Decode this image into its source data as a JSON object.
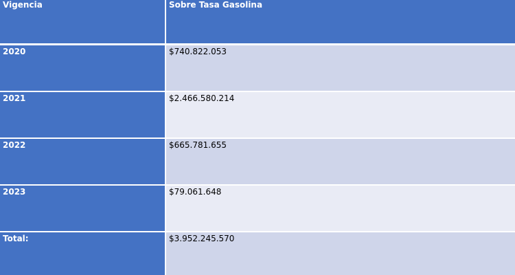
{
  "table": {
    "headers": [
      "Vigencia",
      "Sobre Tasa Gasolina"
    ],
    "rows": [
      {
        "year": "2020",
        "amount": "$740.822.053"
      },
      {
        "year": "2021",
        "amount": "$2.466.580.214"
      },
      {
        "year": "2022",
        "amount": "$665.781.655"
      },
      {
        "year": "2023",
        "amount": "$79.061.648"
      },
      {
        "year": "Total:",
        "amount": "$3.952.245.570"
      }
    ]
  },
  "colors": {
    "header_bg": "#4472c4",
    "row_band_dark": "#cfd5ea",
    "row_band_light": "#e9ebf5"
  }
}
